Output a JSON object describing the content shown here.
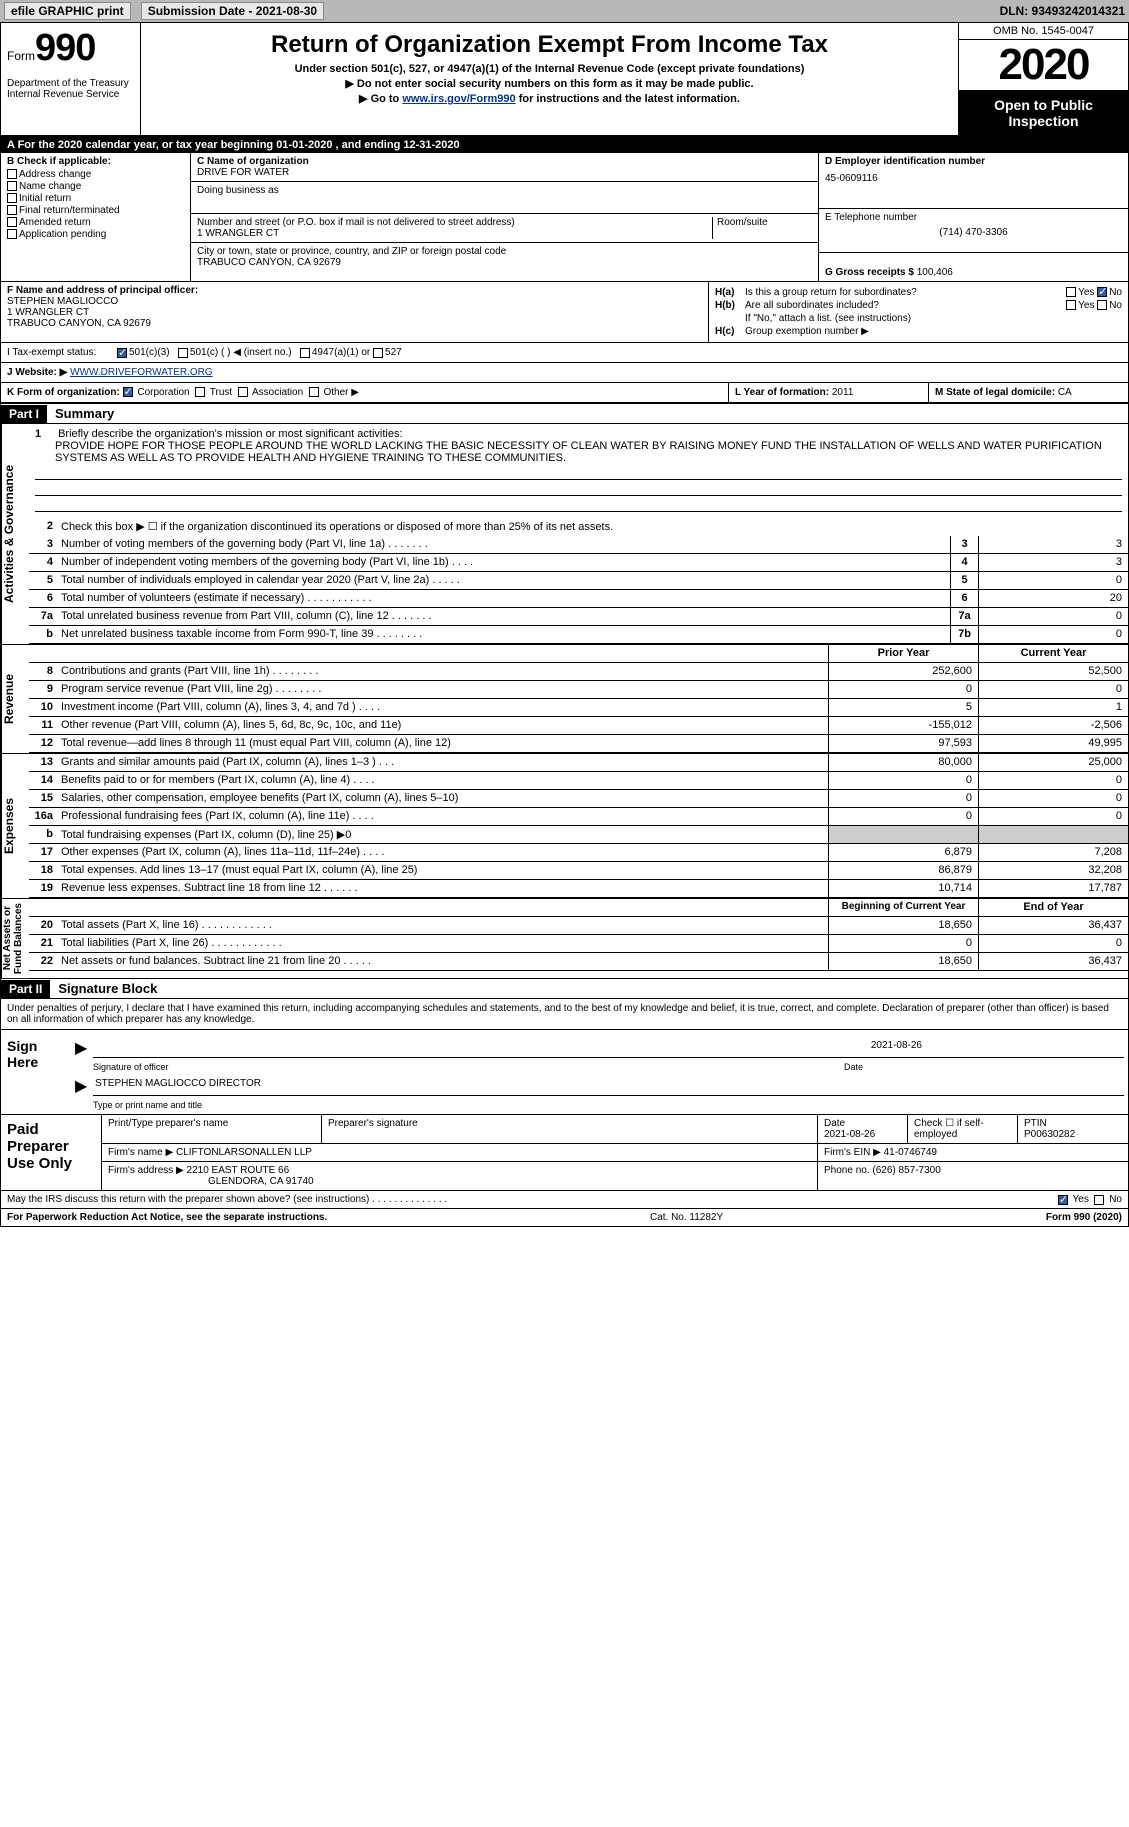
{
  "topbar": {
    "efile": "efile GRAPHIC print",
    "submission": "Submission Date - 2021-08-30",
    "dln": "DLN: 93493242014321"
  },
  "header": {
    "form_word": "Form",
    "form_num": "990",
    "dept": "Department of the Treasury\nInternal Revenue Service",
    "title": "Return of Organization Exempt From Income Tax",
    "subtitle": "Under section 501(c), 527, or 4947(a)(1) of the Internal Revenue Code (except private foundations)",
    "note1": "▶ Do not enter social security numbers on this form as it may be made public.",
    "note2_pre": "▶ Go to ",
    "note2_link": "www.irs.gov/Form990",
    "note2_post": " for instructions and the latest information.",
    "omb": "OMB No. 1545-0047",
    "year": "2020",
    "open": "Open to Public\nInspection"
  },
  "a_line": "A For the 2020 calendar year, or tax year beginning 01-01-2020     , and ending 12-31-2020",
  "b": {
    "hdr": "B Check if applicable:",
    "items": [
      "Address change",
      "Name change",
      "Initial return",
      "Final return/terminated",
      "Amended return",
      "Application pending"
    ]
  },
  "c": {
    "name_lbl": "C Name of organization",
    "name": "DRIVE FOR WATER",
    "dba_lbl": "Doing business as",
    "dba": "",
    "street_lbl": "Number and street (or P.O. box if mail is not delivered to street address)",
    "room_lbl": "Room/suite",
    "street": "1 WRANGLER CT",
    "city_lbl": "City or town, state or province, country, and ZIP or foreign postal code",
    "city": "TRABUCO CANYON, CA   92679"
  },
  "d": {
    "ein_lbl": "D Employer identification number",
    "ein": "45-0609116",
    "phone_lbl": "E Telephone number",
    "phone": "(714) 470-3306",
    "gross_lbl": "G Gross receipts $",
    "gross": "100,406"
  },
  "f": {
    "lbl": "F Name and address of principal officer:",
    "name": "STEPHEN MAGLIOCCO",
    "addr1": "1 WRANGLER CT",
    "addr2": "TRABUCO CANYON, CA   92679"
  },
  "h": {
    "a_lbl": "H(a)",
    "a_txt": "Is this a group return for subordinates?",
    "b_lbl": "H(b)",
    "b_txt": "Are all subordinates included?",
    "b_note": "If \"No,\" attach a list. (see instructions)",
    "c_lbl": "H(c)",
    "c_txt": "Group exemption number ▶"
  },
  "i": {
    "lbl": "I   Tax-exempt status:",
    "o1": "501(c)(3)",
    "o2": "501(c) (   ) ◀ (insert no.)",
    "o3": "4947(a)(1) or",
    "o4": "527"
  },
  "j": {
    "lbl": "J   Website: ▶",
    "url": "WWW.DRIVEFORWATER.ORG"
  },
  "k": {
    "lbl": "K Form of organization:",
    "o1": "Corporation",
    "o2": "Trust",
    "o3": "Association",
    "o4": "Other ▶"
  },
  "l": {
    "lbl": "L Year of formation:",
    "val": "2011"
  },
  "m": {
    "lbl": "M State of legal domicile:",
    "val": "CA"
  },
  "part1": {
    "hdr": "Part I",
    "title": "Summary",
    "line1_lbl": "1",
    "line1_txt": "Briefly describe the organization's mission or most significant activities:",
    "mission": "PROVIDE HOPE FOR THOSE PEOPLE AROUND THE WORLD LACKING THE BASIC NECESSITY OF CLEAN WATER BY RAISING MONEY FUND THE INSTALLATION OF WELLS AND WATER PURIFICATION SYSTEMS AS WELL AS TO PROVIDE HEALTH AND HYGIENE TRAINING TO THESE COMMUNITIES.",
    "line2": "Check this box ▶ ☐  if the organization discontinued its operations or disposed of more than 25% of its net assets.",
    "side_gov": "Activities & Governance",
    "side_rev": "Revenue",
    "side_exp": "Expenses",
    "side_net": "Net Assets or\nFund Balances",
    "rows_gov": [
      {
        "n": "3",
        "t": "Number of voting members of the governing body (Part VI, line 1a)   .    .    .    .    .    .    .",
        "b": "3",
        "v": "3"
      },
      {
        "n": "4",
        "t": "Number of independent voting members of the governing body (Part VI, line 1b)   .    .    .    .",
        "b": "4",
        "v": "3"
      },
      {
        "n": "5",
        "t": "Total number of individuals employed in calendar year 2020 (Part V, line 2a)   .    .    .    .    .",
        "b": "5",
        "v": "0"
      },
      {
        "n": "6",
        "t": "Total number of volunteers (estimate if necessary)    .    .    .    .    .    .    .    .    .    .    .",
        "b": "6",
        "v": "20"
      },
      {
        "n": "7a",
        "t": "Total unrelated business revenue from Part VIII, column (C), line 12   .    .    .    .    .    .    .",
        "b": "7a",
        "v": "0"
      },
      {
        "n": "b",
        "t": "Net unrelated business taxable income from Form 990-T, line 39    .    .    .    .    .    .    .    .",
        "b": "7b",
        "v": "0"
      }
    ],
    "col_prior": "Prior Year",
    "col_curr": "Current Year",
    "rows_rev": [
      {
        "n": "8",
        "t": "Contributions and grants (Part VIII, line 1h)    .    .    .    .    .    .    .    .",
        "p": "252,600",
        "c": "52,500"
      },
      {
        "n": "9",
        "t": "Program service revenue (Part VIII, line 2g)   .    .    .    .    .    .    .    .",
        "p": "0",
        "c": "0"
      },
      {
        "n": "10",
        "t": "Investment income (Part VIII, column (A), lines 3, 4, and 7d )    .    .    .    .",
        "p": "5",
        "c": "1"
      },
      {
        "n": "11",
        "t": "Other revenue (Part VIII, column (A), lines 5, 6d, 8c, 9c, 10c, and 11e)",
        "p": "-155,012",
        "c": "-2,506"
      },
      {
        "n": "12",
        "t": "Total revenue—add lines 8 through 11 (must equal Part VIII, column (A), line 12)",
        "p": "97,593",
        "c": "49,995"
      }
    ],
    "rows_exp": [
      {
        "n": "13",
        "t": "Grants and similar amounts paid (Part IX, column (A), lines 1–3 )  .    .    .",
        "p": "80,000",
        "c": "25,000"
      },
      {
        "n": "14",
        "t": "Benefits paid to or for members (Part IX, column (A), line 4)  .    .    .    .",
        "p": "0",
        "c": "0"
      },
      {
        "n": "15",
        "t": "Salaries, other compensation, employee benefits (Part IX, column (A), lines 5–10)",
        "p": "0",
        "c": "0"
      },
      {
        "n": "16a",
        "t": "Professional fundraising fees (Part IX, column (A), line 11e)   .    .    .    .",
        "p": "0",
        "c": "0"
      },
      {
        "n": "b",
        "t": "Total fundraising expenses (Part IX, column (D), line 25) ▶0",
        "p": "",
        "c": "",
        "shaded": true
      },
      {
        "n": "17",
        "t": "Other expenses (Part IX, column (A), lines 11a–11d, 11f–24e)    .    .    .    .",
        "p": "6,879",
        "c": "7,208"
      },
      {
        "n": "18",
        "t": "Total expenses. Add lines 13–17 (must equal Part IX, column (A), line 25)",
        "p": "86,879",
        "c": "32,208"
      },
      {
        "n": "19",
        "t": "Revenue less expenses. Subtract line 18 from line 12   .    .    .    .    .    .",
        "p": "10,714",
        "c": "17,787"
      }
    ],
    "col_beg": "Beginning of Current Year",
    "col_end": "End of Year",
    "rows_net": [
      {
        "n": "20",
        "t": "Total assets (Part X, line 16)   .     .     .     .    .    .    .    .    .    .    .    .",
        "p": "18,650",
        "c": "36,437"
      },
      {
        "n": "21",
        "t": "Total liabilities (Part X, line 26)  .     .     .    .    .    .    .    .    .    .    .    .",
        "p": "0",
        "c": "0"
      },
      {
        "n": "22",
        "t": "Net assets or fund balances. Subtract line 21 from line 20  .    .    .    .    .",
        "p": "18,650",
        "c": "36,437"
      }
    ]
  },
  "part2": {
    "hdr": "Part II",
    "title": "Signature Block",
    "intro": "Under penalties of perjury, I declare that I have examined this return, including accompanying schedules and statements, and to the best of my knowledge and belief, it is true, correct, and complete. Declaration of preparer (other than officer) is based on all information of which preparer has any knowledge.",
    "sign_here": "Sign\nHere",
    "sig_date": "2021-08-26",
    "sig_lbl": "Signature of officer",
    "date_lbl": "Date",
    "officer": "STEPHEN MAGLIOCCO  DIRECTOR",
    "officer_lbl": "Type or print name and title",
    "paid": "Paid\nPreparer\nUse Only",
    "prep_name_lbl": "Print/Type preparer's name",
    "prep_sig_lbl": "Preparer's signature",
    "prep_date_lbl": "Date",
    "prep_date": "2021-08-26",
    "prep_check": "Check ☐ if self-employed",
    "ptin_lbl": "PTIN",
    "ptin": "P00630282",
    "firm_name_lbl": "Firm's name      ▶",
    "firm_name": "CLIFTONLARSONALLEN LLP",
    "firm_ein_lbl": "Firm's EIN ▶",
    "firm_ein": "41-0746749",
    "firm_addr_lbl": "Firm's address ▶",
    "firm_addr": "2210 EAST ROUTE 66",
    "firm_addr2": "GLENDORA, CA   91740",
    "firm_phone_lbl": "Phone no.",
    "firm_phone": "(626) 857-7300",
    "discuss": "May the IRS discuss this return with the preparer shown above? (see instructions)   .    .    .    .    .    .    .    .    .    .    .    .    .    .",
    "yes": "Yes",
    "no": "No"
  },
  "footer": {
    "paperwork": "For Paperwork Reduction Act Notice, see the separate instructions.",
    "cat": "Cat. No. 11282Y",
    "form": "Form 990 (2020)"
  }
}
